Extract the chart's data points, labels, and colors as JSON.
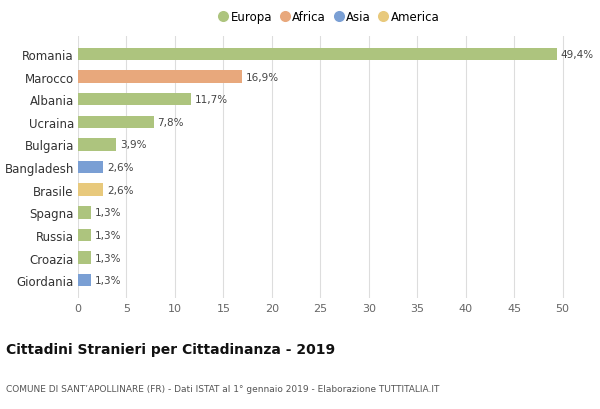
{
  "categories": [
    "Romania",
    "Marocco",
    "Albania",
    "Ucraina",
    "Bulgaria",
    "Bangladesh",
    "Brasile",
    "Spagna",
    "Russia",
    "Croazia",
    "Giordania"
  ],
  "values": [
    49.4,
    16.9,
    11.7,
    7.8,
    3.9,
    2.6,
    2.6,
    1.3,
    1.3,
    1.3,
    1.3
  ],
  "labels": [
    "49,4%",
    "16,9%",
    "11,7%",
    "7,8%",
    "3,9%",
    "2,6%",
    "2,6%",
    "1,3%",
    "1,3%",
    "1,3%",
    "1,3%"
  ],
  "colors": [
    "#adc47e",
    "#e8a87c",
    "#adc47e",
    "#adc47e",
    "#adc47e",
    "#7a9fd4",
    "#e8c97c",
    "#adc47e",
    "#adc47e",
    "#adc47e",
    "#7a9fd4"
  ],
  "legend_labels": [
    "Europa",
    "Africa",
    "Asia",
    "America"
  ],
  "legend_colors": [
    "#adc47e",
    "#e8a87c",
    "#7a9fd4",
    "#e8c97c"
  ],
  "title": "Cittadini Stranieri per Cittadinanza - 2019",
  "subtitle": "COMUNE DI SANT’APOLLINARE (FR) - Dati ISTAT al 1° gennaio 2019 - Elaborazione TUTTITALIA.IT",
  "xlim": [
    0,
    52
  ],
  "xticks": [
    0,
    5,
    10,
    15,
    20,
    25,
    30,
    35,
    40,
    45,
    50
  ],
  "background_color": "#ffffff",
  "grid_color": "#dddddd",
  "bar_height": 0.55
}
